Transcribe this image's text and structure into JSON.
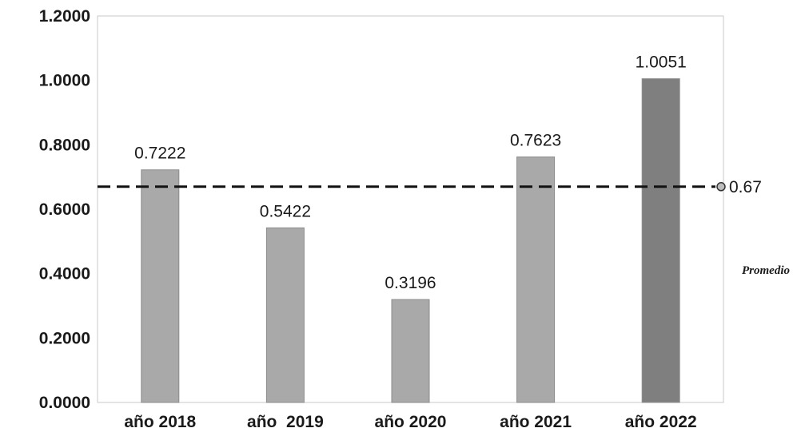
{
  "chart_data": {
    "type": "bar",
    "categories": [
      "año 2018",
      "año  2019",
      "año 2020",
      "año 2021",
      "año 2022"
    ],
    "values": [
      0.7222,
      0.5422,
      0.3196,
      0.7623,
      1.0051
    ],
    "value_labels": [
      "0.7222",
      "0.5422",
      "0.3196",
      "0.7623",
      "1.0051"
    ],
    "y_ticks": [
      "0.0000",
      "0.2000",
      "0.4000",
      "0.6000",
      "0.8000",
      "1.0000",
      "1.2000"
    ],
    "ylim": [
      0,
      1.2
    ],
    "grid": false,
    "reference_line": {
      "value": 0.67,
      "label": "0.67",
      "name": "Promedio",
      "style": "dashed"
    },
    "colors": {
      "bar": "#a9a9a9",
      "bar_last": "#7f7f7f",
      "reference_line": "#111111",
      "frame": "#c8c8c8"
    }
  }
}
